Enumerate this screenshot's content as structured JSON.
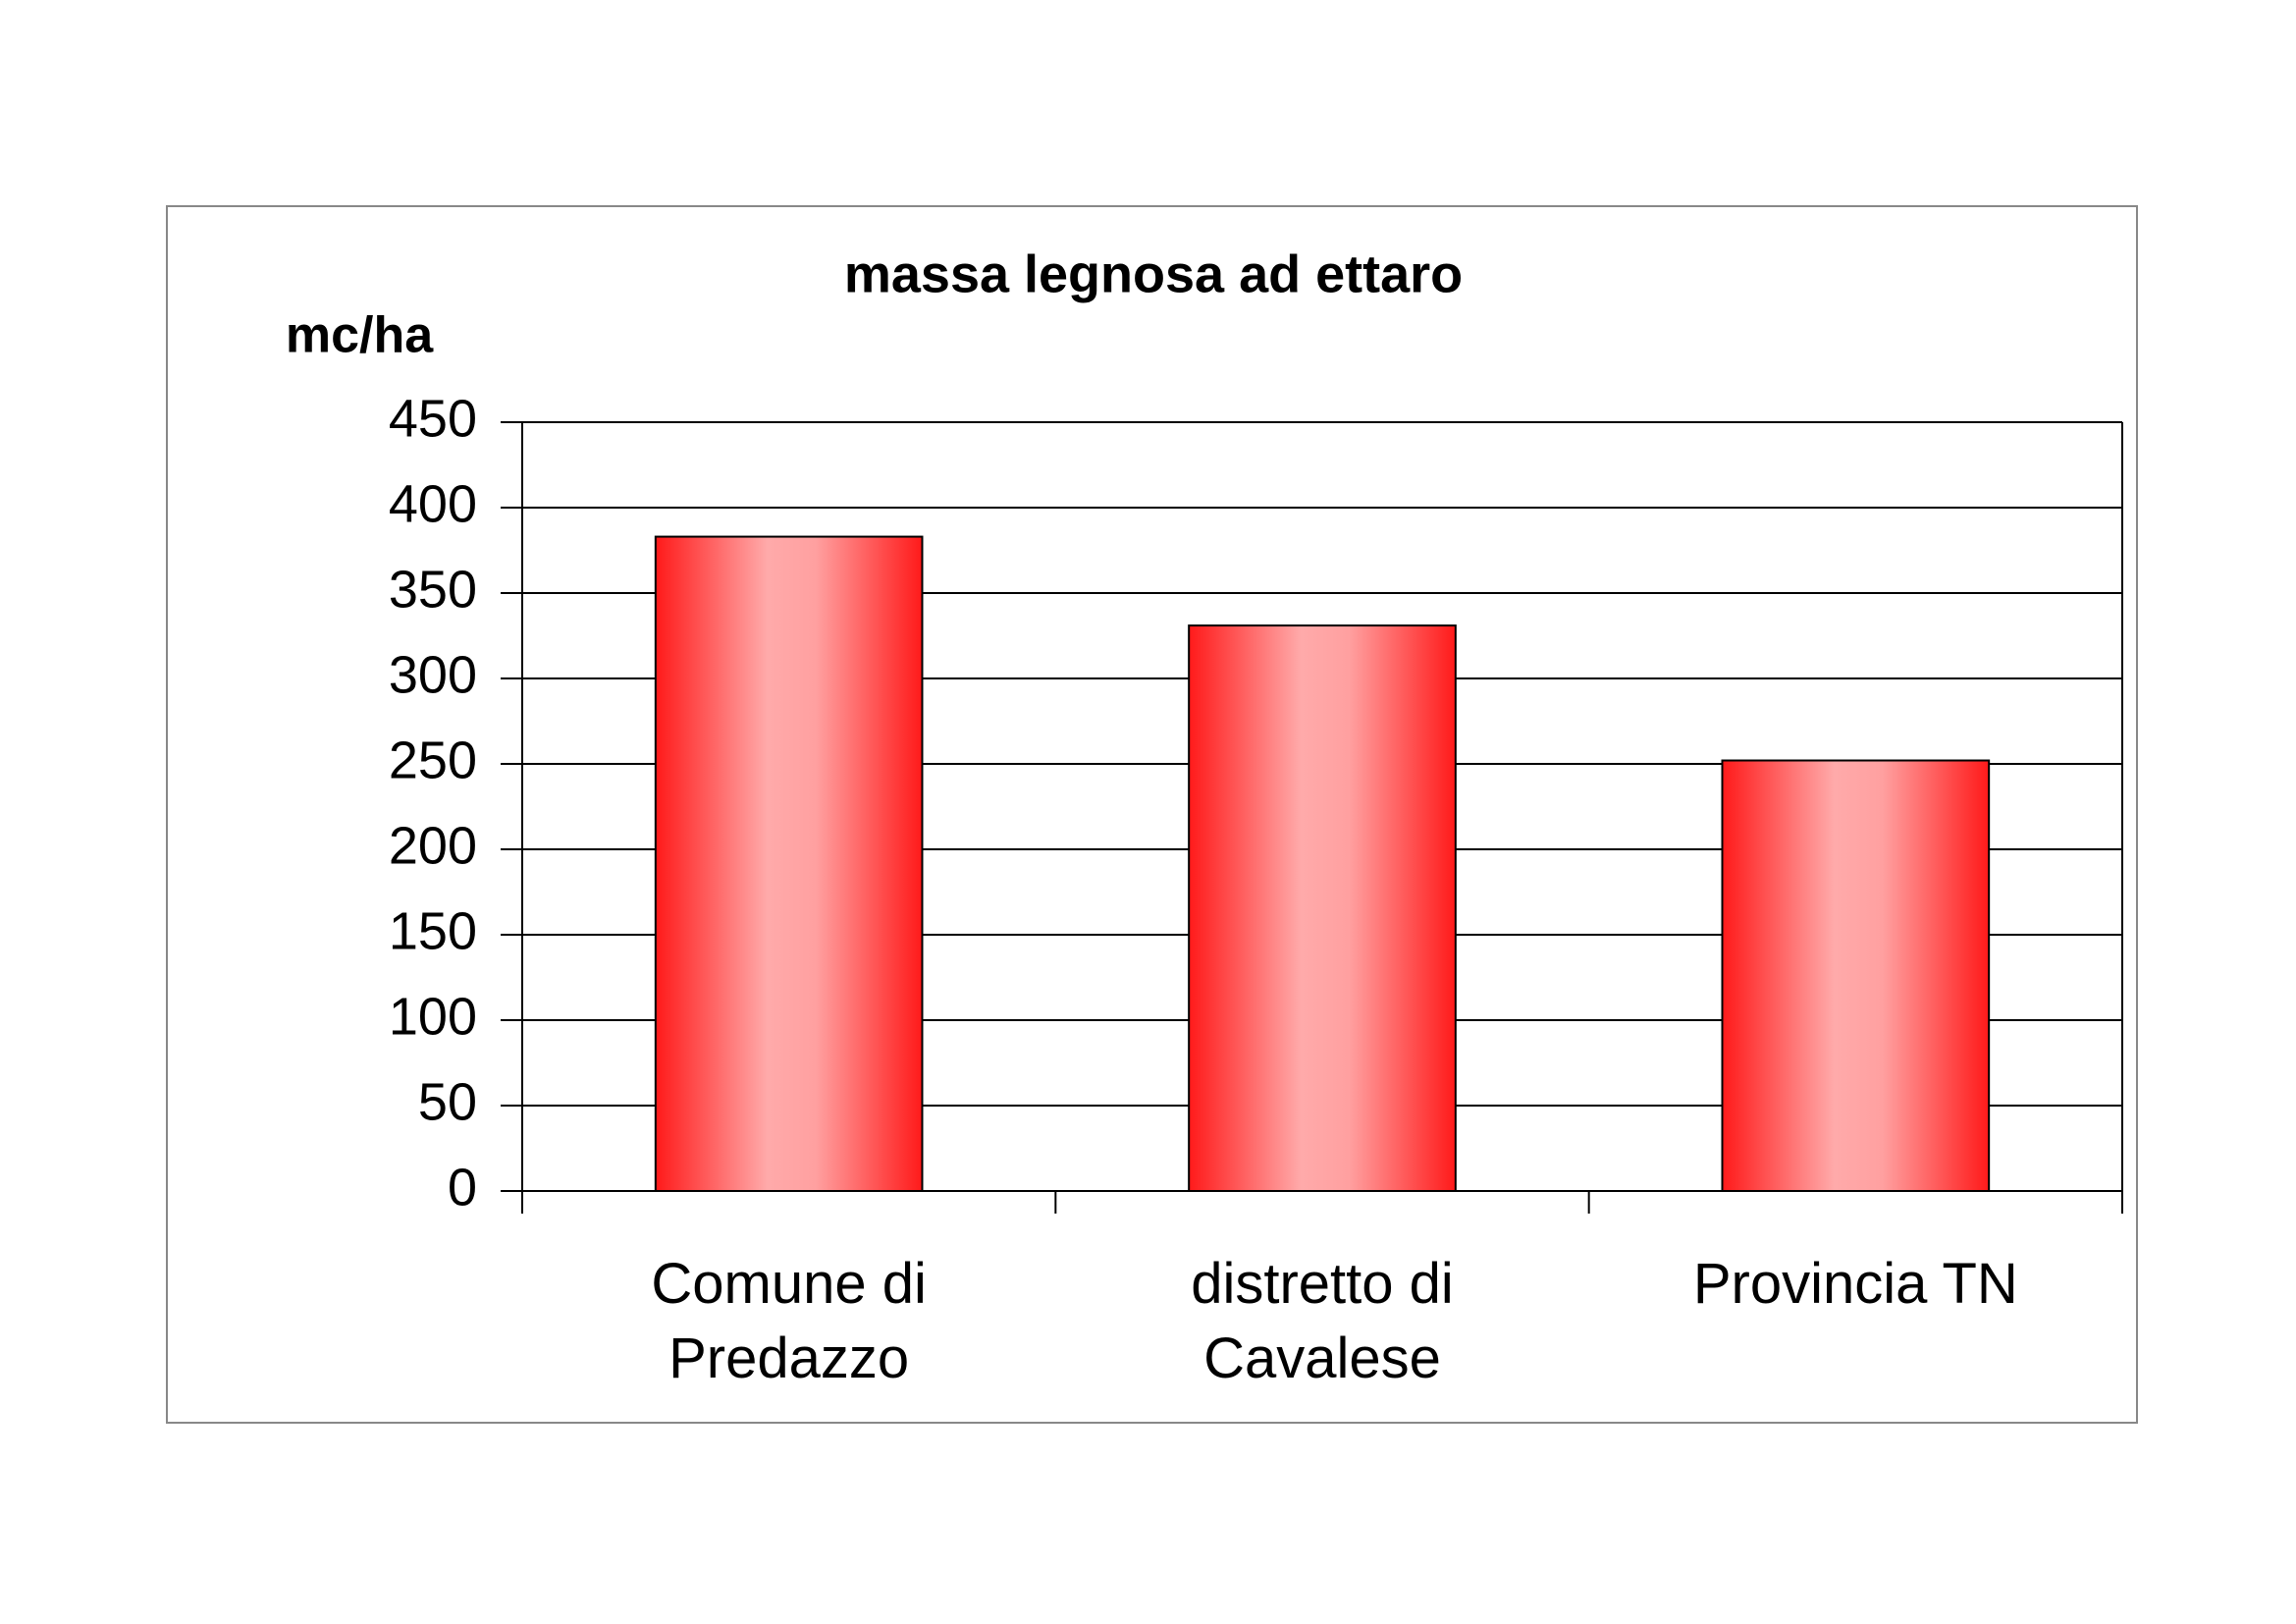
{
  "chart_data": {
    "type": "bar",
    "title": "massa legnosa ad ettaro",
    "y_label": "mc/ha",
    "categories": [
      "Comune di Predazzo",
      "distretto di Cavalese",
      "Provincia TN"
    ],
    "values": [
      383,
      331,
      252
    ],
    "color": "#ff1a1a",
    "ylim": [
      0,
      450
    ],
    "yticks": [
      0,
      50,
      100,
      150,
      200,
      250,
      300,
      350,
      400,
      450
    ],
    "grid": true
  }
}
